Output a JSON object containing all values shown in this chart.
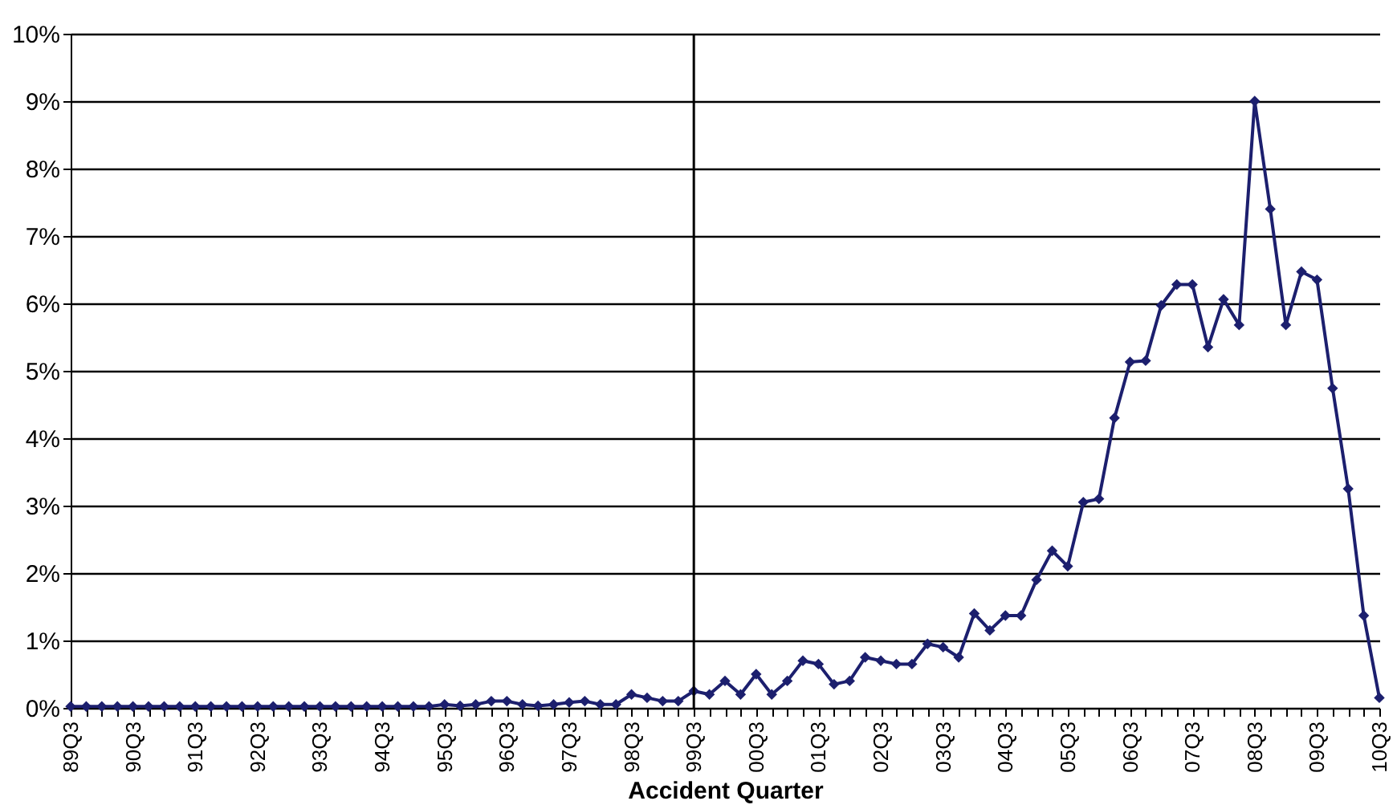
{
  "chart_data": {
    "type": "line",
    "xlabel": "Accident Quarter",
    "categories": [
      "89Q3",
      null,
      null,
      null,
      "90Q3",
      null,
      null,
      null,
      "91Q3",
      null,
      null,
      null,
      "92Q3",
      null,
      null,
      null,
      "93Q3",
      null,
      null,
      null,
      "94Q3",
      null,
      null,
      null,
      "95Q3",
      null,
      null,
      null,
      "96Q3",
      null,
      null,
      null,
      "97Q3",
      null,
      null,
      null,
      "98Q3",
      null,
      null,
      null,
      "99Q3",
      null,
      null,
      null,
      "00Q3",
      null,
      null,
      null,
      "01Q3",
      null,
      null,
      null,
      "02Q3",
      null,
      null,
      null,
      "03Q3",
      null,
      null,
      null,
      "04Q3",
      null,
      null,
      null,
      "05Q3",
      null,
      null,
      null,
      "06Q3",
      null,
      null,
      null,
      "07Q3",
      null,
      null,
      null,
      "08Q3",
      null,
      null,
      null,
      "09Q3",
      null,
      null,
      null,
      "10Q3"
    ],
    "series": [
      {
        "color": "#1c1f6e",
        "values": [
          0.02,
          0.02,
          0.02,
          0.02,
          0.02,
          0.02,
          0.02,
          0.02,
          0.02,
          0.02,
          0.02,
          0.02,
          0.02,
          0.02,
          0.02,
          0.02,
          0.02,
          0.02,
          0.02,
          0.02,
          0.02,
          0.02,
          0.02,
          0.02,
          0.05,
          0.03,
          0.05,
          0.1,
          0.1,
          0.05,
          0.03,
          0.05,
          0.08,
          0.1,
          0.05,
          0.05,
          0.2,
          0.15,
          0.1,
          0.1,
          0.25,
          0.2,
          0.4,
          0.2,
          0.5,
          0.2,
          0.4,
          0.7,
          0.65,
          0.35,
          0.4,
          0.75,
          0.7,
          0.65,
          0.65,
          0.95,
          0.9,
          0.75,
          1.4,
          1.15,
          1.37,
          1.37,
          1.9,
          2.33,
          2.1,
          3.05,
          3.1,
          4.3,
          5.13,
          5.15,
          5.97,
          6.28,
          6.28,
          5.35,
          6.06,
          5.68,
          9.0,
          7.4,
          5.68,
          6.47,
          6.35,
          4.74,
          3.25,
          1.37,
          0.15
        ]
      }
    ],
    "ylim": [
      0,
      10
    ],
    "yticks": [
      {
        "value": 0,
        "label": "0%"
      },
      {
        "value": 1,
        "label": "1%"
      },
      {
        "value": 2,
        "label": "2%"
      },
      {
        "value": 3,
        "label": "3%"
      },
      {
        "value": 4,
        "label": "4%"
      },
      {
        "value": 5,
        "label": "5%"
      },
      {
        "value": 6,
        "label": "6%"
      },
      {
        "value": 7,
        "label": "7%"
      },
      {
        "value": 8,
        "label": "8%"
      },
      {
        "value": 9,
        "label": "9%"
      },
      {
        "value": 10,
        "label": "10%"
      }
    ],
    "grid": "y",
    "marker": "diamond",
    "line_style": "solid",
    "ref_lines": [
      {
        "axis": "x",
        "value": "99Q3",
        "color": "#000000"
      }
    ]
  }
}
